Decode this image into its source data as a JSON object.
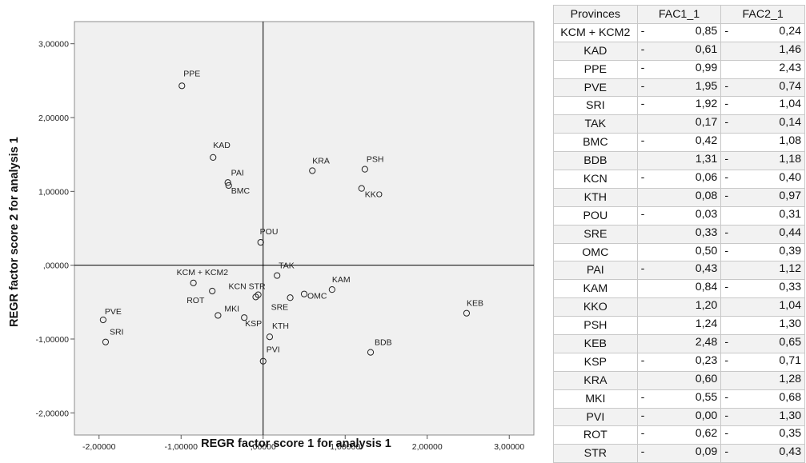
{
  "chart_data": {
    "type": "scatter",
    "xlabel": "REGR factor score   1 for analysis 1",
    "ylabel": "REGR factor score   2 for analysis 1",
    "xlim": [
      -2.3,
      3.3
    ],
    "ylim": [
      -2.3,
      3.3
    ],
    "x_ticks": [
      "-2,00000",
      "-1,00000",
      ",00000",
      "1,00000",
      "2,00000",
      "3,00000"
    ],
    "y_ticks": [
      "3,00000",
      "2,00000",
      "1,00000",
      ",00000",
      "-1,00000",
      "-2,00000"
    ],
    "reference_lines": {
      "x": 0,
      "y": 0
    },
    "points": [
      {
        "label": "KCM + KCM2",
        "x": -0.85,
        "y": -0.24
      },
      {
        "label": "KAD",
        "x": -0.61,
        "y": 1.46
      },
      {
        "label": "PPE",
        "x": -0.99,
        "y": 2.43
      },
      {
        "label": "PVE",
        "x": -1.95,
        "y": -0.74
      },
      {
        "label": "SRI",
        "x": -1.92,
        "y": -1.04
      },
      {
        "label": "TAK",
        "x": 0.17,
        "y": -0.14
      },
      {
        "label": "BMC",
        "x": -0.42,
        "y": 1.08
      },
      {
        "label": "BDB",
        "x": 1.31,
        "y": -1.18
      },
      {
        "label": "KCN",
        "x": -0.06,
        "y": -0.4
      },
      {
        "label": "KTH",
        "x": 0.08,
        "y": -0.97
      },
      {
        "label": "POU",
        "x": -0.03,
        "y": 0.31
      },
      {
        "label": "SRE",
        "x": 0.33,
        "y": -0.44
      },
      {
        "label": "OMC",
        "x": 0.5,
        "y": -0.39
      },
      {
        "label": "PAI",
        "x": -0.43,
        "y": 1.12
      },
      {
        "label": "KAM",
        "x": 0.84,
        "y": -0.33
      },
      {
        "label": "KKO",
        "x": 1.2,
        "y": 1.04
      },
      {
        "label": "PSH",
        "x": 1.24,
        "y": 1.3
      },
      {
        "label": "KEB",
        "x": 2.48,
        "y": -0.65
      },
      {
        "label": "KSP",
        "x": -0.23,
        "y": -0.71
      },
      {
        "label": "KRA",
        "x": 0.6,
        "y": 1.28
      },
      {
        "label": "MKI",
        "x": -0.55,
        "y": -0.68
      },
      {
        "label": "PVI",
        "x": 0.0,
        "y": -1.3
      },
      {
        "label": "ROT",
        "x": -0.62,
        "y": -0.35
      },
      {
        "label": "STR",
        "x": -0.09,
        "y": -0.43
      }
    ],
    "plot_labels": [
      {
        "text": "PPE",
        "for": "PPE",
        "anchor": "start",
        "dx": 2,
        "dy": -12
      },
      {
        "text": "KAD",
        "for": "KAD",
        "anchor": "start",
        "dx": 0,
        "dy": -12
      },
      {
        "text": "PAI",
        "for": "PAI",
        "anchor": "start",
        "dx": 4,
        "dy": -9
      },
      {
        "text": "BMC",
        "for": "BMC",
        "anchor": "start",
        "dx": 3,
        "dy": 10
      },
      {
        "text": "KRA",
        "for": "KRA",
        "anchor": "start",
        "dx": 0,
        "dy": -9
      },
      {
        "text": "PSH",
        "for": "PSH",
        "anchor": "start",
        "dx": 2,
        "dy": -9
      },
      {
        "text": "KKO",
        "for": "KKO",
        "anchor": "start",
        "dx": 4,
        "dy": 11
      },
      {
        "text": "POU",
        "for": "POU",
        "anchor": "start",
        "dx": -1,
        "dy": -10
      },
      {
        "text": "TAK",
        "for": "TAK",
        "anchor": "start",
        "dx": 2,
        "dy": -9
      },
      {
        "text": "KCM + KCM2",
        "for": "KCM + KCM2",
        "anchor": "start",
        "dx": -21,
        "dy": -10
      },
      {
        "text": "KCN STR",
        "for": "STR",
        "anchor": "start",
        "dx": -34,
        "dy": -10
      },
      {
        "text": "KAM",
        "for": "KAM",
        "anchor": "start",
        "dx": 0,
        "dy": -9
      },
      {
        "text": "ROT",
        "for": "ROT",
        "anchor": "start",
        "dx": -32,
        "dy": 15
      },
      {
        "text": "MKI",
        "for": "MKI",
        "anchor": "start",
        "dx": 8,
        "dy": -5
      },
      {
        "text": "KSP",
        "for": "KSP",
        "anchor": "start",
        "dx": 1,
        "dy": 11
      },
      {
        "text": "SRE",
        "for": "SRE",
        "anchor": "start",
        "dx": -24,
        "dy": 15
      },
      {
        "text": "OMC",
        "for": "OMC",
        "anchor": "start",
        "dx": 4,
        "dy": 6
      },
      {
        "text": "KEB",
        "for": "KEB",
        "anchor": "start",
        "dx": 0,
        "dy": -9
      },
      {
        "text": "PVE",
        "for": "PVE",
        "anchor": "start",
        "dx": 2,
        "dy": -7
      },
      {
        "text": "SRI",
        "for": "SRI",
        "anchor": "start",
        "dx": 5,
        "dy": -9
      },
      {
        "text": "KTH",
        "for": "KTH",
        "anchor": "start",
        "dx": 3,
        "dy": -10
      },
      {
        "text": "BDB",
        "for": "BDB",
        "anchor": "start",
        "dx": 5,
        "dy": -9
      },
      {
        "text": "PVI",
        "for": "PVI",
        "anchor": "start",
        "dx": 4,
        "dy": -11
      }
    ],
    "table": {
      "headers": [
        "Provinces",
        "FAC1_1",
        "FAC2_1"
      ],
      "rows": [
        [
          "KCM + KCM2",
          "-",
          "0,85",
          "-",
          "0,24"
        ],
        [
          "KAD",
          "-",
          "0,61",
          "",
          "1,46"
        ],
        [
          "PPE",
          "-",
          "0,99",
          "",
          "2,43"
        ],
        [
          "PVE",
          "-",
          "1,95",
          "-",
          "0,74"
        ],
        [
          "SRI",
          "-",
          "1,92",
          "-",
          "1,04"
        ],
        [
          "TAK",
          "",
          "0,17",
          "-",
          "0,14"
        ],
        [
          "BMC",
          "-",
          "0,42",
          "",
          "1,08"
        ],
        [
          "BDB",
          "",
          "1,31",
          "-",
          "1,18"
        ],
        [
          "KCN",
          "-",
          "0,06",
          "-",
          "0,40"
        ],
        [
          "KTH",
          "",
          "0,08",
          "-",
          "0,97"
        ],
        [
          "POU",
          "-",
          "0,03",
          "",
          "0,31"
        ],
        [
          "SRE",
          "",
          "0,33",
          "-",
          "0,44"
        ],
        [
          "OMC",
          "",
          "0,50",
          "-",
          "0,39"
        ],
        [
          "PAI",
          "-",
          "0,43",
          "",
          "1,12"
        ],
        [
          "KAM",
          "",
          "0,84",
          "-",
          "0,33"
        ],
        [
          "KKO",
          "",
          "1,20",
          "",
          "1,04"
        ],
        [
          "PSH",
          "",
          "1,24",
          "",
          "1,30"
        ],
        [
          "KEB",
          "",
          "2,48",
          "-",
          "0,65"
        ],
        [
          "KSP",
          "-",
          "0,23",
          "-",
          "0,71"
        ],
        [
          "KRA",
          "",
          "0,60",
          "",
          "1,28"
        ],
        [
          "MKI",
          "-",
          "0,55",
          "-",
          "0,68"
        ],
        [
          "PVI",
          "-",
          "0,00",
          "-",
          "1,30"
        ],
        [
          "ROT",
          "-",
          "0,62",
          "-",
          "0,35"
        ],
        [
          "STR",
          "-",
          "0,09",
          "-",
          "0,43"
        ]
      ]
    }
  }
}
